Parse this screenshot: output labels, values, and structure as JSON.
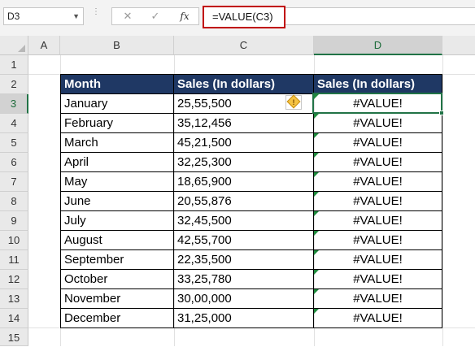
{
  "formula_bar": {
    "name_box": "D3",
    "cancel_symbol": "✕",
    "enter_symbol": "✓",
    "fx_label": "fx",
    "formula": "=VALUE(C3)"
  },
  "columns": [
    "A",
    "B",
    "C",
    "D"
  ],
  "rows": [
    "1",
    "2",
    "3",
    "4",
    "5",
    "6",
    "7",
    "8",
    "9",
    "10",
    "11",
    "12",
    "13",
    "14",
    "15"
  ],
  "active_cell": {
    "column": "D",
    "row": "3"
  },
  "table": {
    "headers": [
      "Month",
      "Sales (In dollars)",
      "Sales (In dollars)"
    ],
    "rows": [
      {
        "month": "January",
        "sales": "25,55,500",
        "result": "#VALUE!"
      },
      {
        "month": "February",
        "sales": "35,12,456",
        "result": "#VALUE!"
      },
      {
        "month": "March",
        "sales": "45,21,500",
        "result": "#VALUE!"
      },
      {
        "month": "April",
        "sales": "32,25,300",
        "result": "#VALUE!"
      },
      {
        "month": "May",
        "sales": "18,65,900",
        "result": "#VALUE!"
      },
      {
        "month": "June",
        "sales": "20,55,876",
        "result": "#VALUE!"
      },
      {
        "month": "July",
        "sales": "32,45,500",
        "result": "#VALUE!"
      },
      {
        "month": "August",
        "sales": "42,55,700",
        "result": "#VALUE!"
      },
      {
        "month": "September",
        "sales": "22,35,500",
        "result": "#VALUE!"
      },
      {
        "month": "October",
        "sales": "33,25,780",
        "result": "#VALUE!"
      },
      {
        "month": "November",
        "sales": "30,00,000",
        "result": "#VALUE!"
      },
      {
        "month": "December",
        "sales": "31,25,000",
        "result": "#VALUE!"
      }
    ]
  },
  "colors": {
    "header_fill": "#1f3864",
    "selection": "#217346",
    "error_flag": "#1e8a3c",
    "formula_highlight": "#c00000"
  },
  "icons": {
    "error_indicator": "warning-diamond-icon",
    "dropdown": "chevron-down-icon"
  }
}
